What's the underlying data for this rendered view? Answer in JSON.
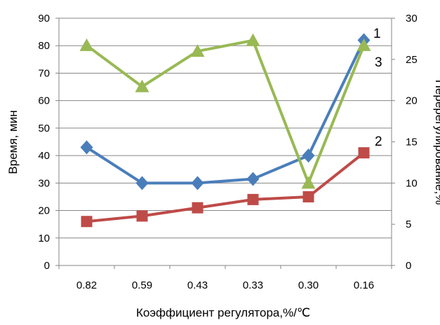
{
  "chart_data": {
    "type": "line",
    "title": "",
    "xlabel": "Коэффициент регулятора,%/℃",
    "ylabel": "Время, мин",
    "y2label": "Перерегулирование,%",
    "categories": [
      "0.82",
      "0.59",
      "0.43",
      "0.33",
      "0.30",
      "0.16"
    ],
    "ylim": [
      0,
      90
    ],
    "y_ticks": [
      "0",
      "10",
      "20",
      "30",
      "40",
      "50",
      "60",
      "70",
      "80",
      "90"
    ],
    "y2lim": [
      0,
      30
    ],
    "y2_ticks": [
      "0",
      "5",
      "10",
      "15",
      "20",
      "25",
      "30"
    ],
    "grid": true,
    "legend": "none",
    "series": [
      {
        "name": "1",
        "axis": "left",
        "marker": "diamond",
        "color": "#4a7ebb",
        "values": [
          43,
          30,
          30,
          31.5,
          40,
          82
        ]
      },
      {
        "name": "2",
        "axis": "left",
        "marker": "square",
        "color": "#be4b48",
        "values": [
          16,
          18,
          21,
          24,
          25,
          41
        ]
      },
      {
        "name": "3",
        "axis": "right",
        "marker": "triangle",
        "color": "#98b954",
        "values": [
          26.7,
          21.7,
          26,
          27.3,
          10,
          26.7
        ]
      }
    ]
  }
}
